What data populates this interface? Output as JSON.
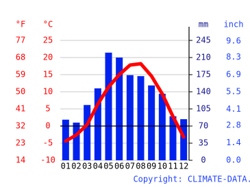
{
  "chart_data": {
    "type": "combo",
    "categories": [
      "01",
      "02",
      "03",
      "04",
      "05",
      "06",
      "07",
      "08",
      "09",
      "10",
      "11",
      "12"
    ],
    "series": [
      {
        "type": "bar",
        "axis": "y2",
        "color": "#0022ee",
        "values": [
          83,
          77,
          113,
          147,
          220,
          210,
          174,
          172,
          153,
          136,
          90,
          84
        ]
      },
      {
        "type": "line",
        "axis": "y",
        "color": "#ff0000",
        "values": [
          -4.4,
          -2.6,
          0.4,
          6.4,
          11.4,
          15,
          17.8,
          18.2,
          14.6,
          9.4,
          2.8,
          -3.2
        ]
      }
    ],
    "y_unit": "°C",
    "ylim": [
      -10,
      29
    ],
    "yticks": [
      -10,
      -5,
      0,
      5,
      10,
      15,
      20,
      25
    ],
    "y_color": "#ff0000",
    "fahrenheit_unit": "°F",
    "fahrenheit_lim": [
      14,
      84.2
    ],
    "fahrenheit_ticks": [
      14,
      23,
      32,
      41,
      50,
      59,
      68,
      77
    ],
    "fahrenheit_color": "#ff0000",
    "y2_unit": "mm",
    "y2lim": [
      0,
      273
    ],
    "y2ticks": [
      0,
      35,
      70,
      105,
      140,
      175,
      210,
      245
    ],
    "y2_color": "#14148c",
    "inch_unit": "inch",
    "inch_lim": [
      0,
      10.75
    ],
    "inch_ticks": [
      {
        "value": 0,
        "label": "0.0"
      },
      1.4,
      2.8,
      4.1,
      5.5,
      6.9,
      8.3,
      9.6
    ],
    "inch_color": "#2244ff",
    "grid": true,
    "copyright": "Copyright: CLIMATE-DATA.ORG"
  }
}
